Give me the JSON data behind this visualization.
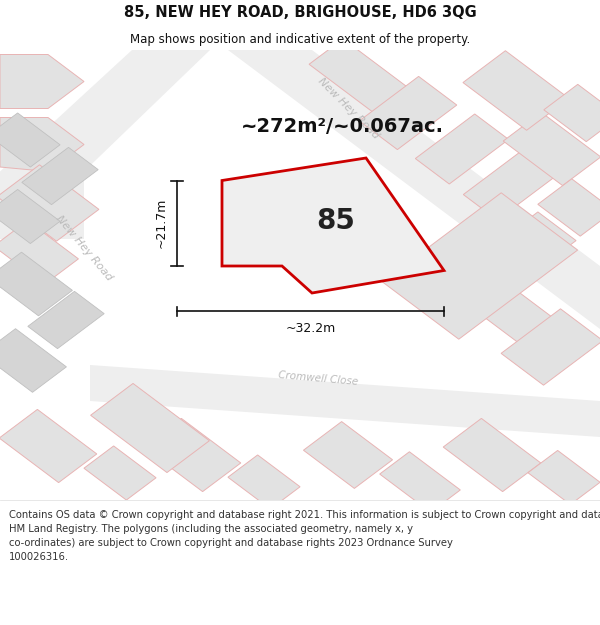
{
  "title": "85, NEW HEY ROAD, BRIGHOUSE, HD6 3QG",
  "subtitle": "Map shows position and indicative extent of the property.",
  "area_text": "~272m²/~0.067ac.",
  "label_85": "85",
  "dim_vertical": "~21.7m",
  "dim_horizontal": "~32.2m",
  "footer_lines": [
    "Contains OS data © Crown copyright and database right 2021. This information is subject to Crown copyright and database rights 2023 and is reproduced with the permission of",
    "HM Land Registry. The polygons (including the associated geometry, namely x, y",
    "co-ordinates) are subject to Crown copyright and database rights 2023 Ordnance Survey",
    "100026316."
  ],
  "background_color": "#ffffff",
  "map_bg": "#f7f7f7",
  "highlight_stroke": "#cc0000",
  "highlight_fill": "#efefef",
  "road_stroke": "#e8b4b4",
  "building_fill": "#e2e2e2",
  "building_stroke": "#c8c8c8",
  "road_label_color": "#bbbbbb",
  "title_color": "#111111",
  "dim_color": "#111111",
  "footer_color": "#333333",
  "title_fontsize": 10.5,
  "subtitle_fontsize": 8.5,
  "area_fontsize": 14,
  "label_fontsize": 20,
  "dim_fontsize": 9,
  "road_label_fontsize": 8,
  "footer_fontsize": 7.2
}
